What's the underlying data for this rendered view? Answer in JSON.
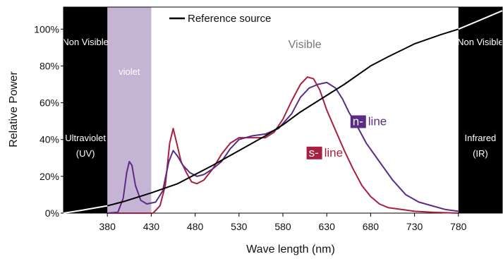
{
  "chart_data": {
    "type": "line",
    "xlabel": "Wave length (nm)",
    "ylabel": "Relative Power",
    "xlim": [
      330,
      830
    ],
    "ylim": [
      0,
      112
    ],
    "x_ticks": [
      380,
      430,
      480,
      530,
      580,
      630,
      680,
      730,
      780
    ],
    "y_ticks": [
      {
        "value": 0,
        "label": "0%"
      },
      {
        "value": 20,
        "label": "20%"
      },
      {
        "value": 40,
        "label": "40%"
      },
      {
        "value": 60,
        "label": "60%"
      },
      {
        "value": 80,
        "label": "80%"
      },
      {
        "value": 100,
        "label": "100%"
      }
    ],
    "legend": {
      "label": "Reference source",
      "placement": "top-center"
    },
    "regions": [
      {
        "range": [
          330,
          380
        ],
        "color": "#000000",
        "labels": [
          "Non Visible",
          "Ultraviolet",
          "(UV)"
        ]
      },
      {
        "range": [
          380,
          430
        ],
        "color": "#c5b4d4",
        "labels": [
          "violet"
        ]
      },
      {
        "range": [
          380,
          780
        ],
        "color": "#ffffff",
        "labels": [
          "Visible"
        ]
      },
      {
        "range": [
          780,
          830
        ],
        "color": "#000000",
        "labels": [
          "Non Visible",
          "Infrared",
          "(IR)"
        ]
      }
    ],
    "series": [
      {
        "name": "Reference source",
        "color": "#000000",
        "points": [
          [
            330,
            0
          ],
          [
            350,
            1.5
          ],
          [
            380,
            4
          ],
          [
            400,
            6.5
          ],
          [
            430,
            11
          ],
          [
            460,
            16
          ],
          [
            480,
            21
          ],
          [
            500,
            26
          ],
          [
            530,
            34
          ],
          [
            560,
            42
          ],
          [
            580,
            48
          ],
          [
            600,
            55
          ],
          [
            630,
            64
          ],
          [
            650,
            70
          ],
          [
            680,
            80
          ],
          [
            700,
            85
          ],
          [
            730,
            92
          ],
          [
            760,
            97
          ],
          [
            780,
            100
          ],
          [
            800,
            104
          ],
          [
            830,
            110
          ]
        ]
      },
      {
        "name": "n-line",
        "color": "#5b2c86",
        "points": [
          [
            380,
            0
          ],
          [
            392,
            0.5
          ],
          [
            398,
            8
          ],
          [
            402,
            22
          ],
          [
            405,
            28
          ],
          [
            408,
            26
          ],
          [
            412,
            15
          ],
          [
            418,
            7
          ],
          [
            425,
            5
          ],
          [
            435,
            6
          ],
          [
            443,
            12
          ],
          [
            450,
            28
          ],
          [
            455,
            34
          ],
          [
            460,
            31
          ],
          [
            466,
            26
          ],
          [
            474,
            22
          ],
          [
            482,
            20
          ],
          [
            490,
            21
          ],
          [
            500,
            24
          ],
          [
            510,
            28
          ],
          [
            520,
            35
          ],
          [
            530,
            40
          ],
          [
            545,
            42
          ],
          [
            560,
            43
          ],
          [
            575,
            46
          ],
          [
            590,
            54
          ],
          [
            600,
            63
          ],
          [
            610,
            68
          ],
          [
            620,
            70
          ],
          [
            630,
            71
          ],
          [
            640,
            68
          ],
          [
            648,
            62
          ],
          [
            655,
            55
          ],
          [
            665,
            47
          ],
          [
            675,
            38
          ],
          [
            690,
            28
          ],
          [
            705,
            18
          ],
          [
            720,
            10
          ],
          [
            735,
            6
          ],
          [
            750,
            4
          ],
          [
            765,
            2
          ],
          [
            780,
            1
          ]
        ]
      },
      {
        "name": "s-line",
        "color": "#a8203f",
        "points": [
          [
            380,
            0
          ],
          [
            420,
            0
          ],
          [
            432,
            0
          ],
          [
            440,
            4
          ],
          [
            446,
            15
          ],
          [
            451,
            38
          ],
          [
            455,
            46
          ],
          [
            459,
            38
          ],
          [
            464,
            28
          ],
          [
            470,
            22
          ],
          [
            476,
            17
          ],
          [
            482,
            16
          ],
          [
            490,
            18
          ],
          [
            500,
            24
          ],
          [
            510,
            32
          ],
          [
            520,
            38
          ],
          [
            530,
            41
          ],
          [
            545,
            41
          ],
          [
            560,
            41
          ],
          [
            570,
            44
          ],
          [
            580,
            51
          ],
          [
            590,
            61
          ],
          [
            600,
            70
          ],
          [
            608,
            74
          ],
          [
            615,
            73
          ],
          [
            622,
            67
          ],
          [
            630,
            56
          ],
          [
            640,
            45
          ],
          [
            650,
            34
          ],
          [
            660,
            24
          ],
          [
            670,
            15
          ],
          [
            680,
            9
          ],
          [
            690,
            5
          ],
          [
            700,
            3
          ],
          [
            715,
            2
          ],
          [
            730,
            1
          ],
          [
            750,
            0.5
          ],
          [
            780,
            0
          ]
        ]
      }
    ],
    "annotations": [
      {
        "text": "n-",
        "rest": "line",
        "x": 657,
        "y": 47
      },
      {
        "text": "s-",
        "rest": "line",
        "x": 607,
        "y": 30
      }
    ]
  }
}
